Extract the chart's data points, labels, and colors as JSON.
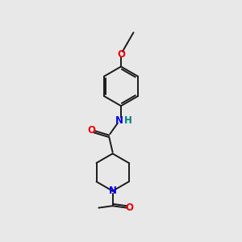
{
  "background_color": "#e8e8e8",
  "bond_color": "#1a1a1a",
  "N_color": "#0000ee",
  "O_color": "#ee0000",
  "NH_color": "#008080",
  "lw": 1.4,
  "fs": 8.5,
  "xlim": [
    0,
    10
  ],
  "ylim": [
    0,
    10
  ]
}
